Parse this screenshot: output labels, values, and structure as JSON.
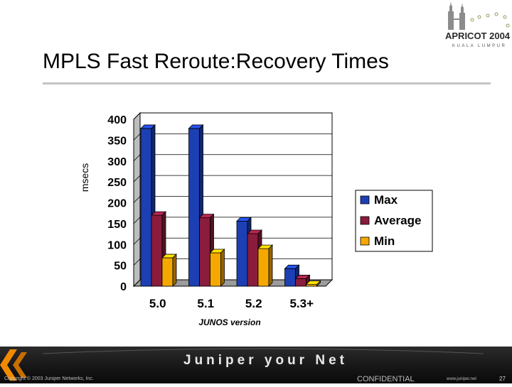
{
  "slide": {
    "title": "MPLS Fast Reroute:Recovery Times",
    "logo_text_main": "APRICOT 2004",
    "logo_text_sub": "KUALA LUMPUR",
    "footer_brand": "Juniper your Net",
    "copyright": "Copyright © 2003 Juniper Networks, Inc.",
    "confidential": "CONFIDENTIAL",
    "website": "www.juniper.net",
    "page_number": "27"
  },
  "colors": {
    "max": "#1c3fb4",
    "average": "#8a1c3c",
    "min": "#f5a800",
    "accent_orange": "#f08a00",
    "title_rule": "#c4c4c4"
  },
  "chart_data": {
    "type": "bar",
    "style": "3d-clustered",
    "categories": [
      "5.0",
      "5.1",
      "5.2",
      "5.3+"
    ],
    "series": [
      {
        "name": "Max",
        "values": [
          378,
          378,
          156,
          42
        ]
      },
      {
        "name": "Average",
        "values": [
          170,
          164,
          126,
          18
        ]
      },
      {
        "name": "Min",
        "values": [
          68,
          80,
          90,
          4
        ]
      }
    ],
    "ylabel": "msecs",
    "xlabel": "JUNOS version",
    "ylim": [
      0,
      400
    ],
    "yticks": [
      "0",
      "50",
      "100",
      "150",
      "200",
      "250",
      "300",
      "350",
      "400"
    ],
    "grid": true,
    "legend_position": "right"
  }
}
